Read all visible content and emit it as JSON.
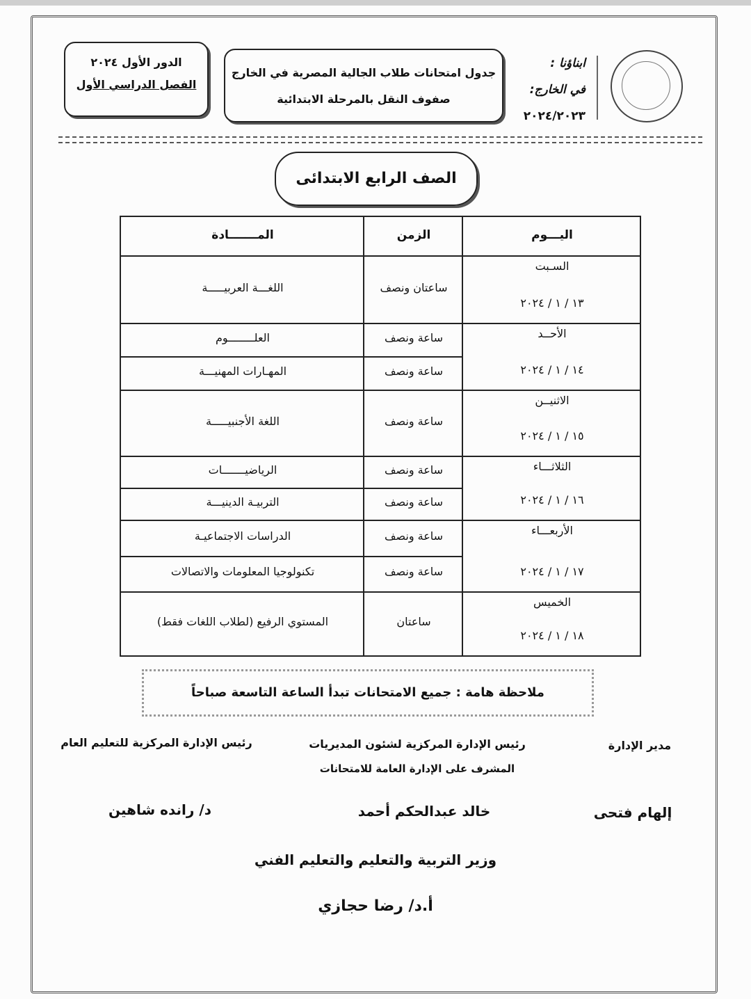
{
  "header": {
    "session": "الدور الأول ٢٠٢٤",
    "term": "الفصل الدراسي الأول",
    "title_line1": "جدول امتحانات طلاب الجالية المصرية في الخارج",
    "title_line2": "صفوف النقل بالمرحلة الابتدائية",
    "side_line1": "ابناؤنا :",
    "side_line2": "في الخارج:",
    "year": "٢٠٢٤/٢٠٢٣"
  },
  "grade": "الصف الرابع الابتدائى",
  "table": {
    "headers": {
      "day": "اليـــوم",
      "time": "الزمن",
      "subject": "المـــــــادة"
    },
    "days": [
      {
        "day": "السـبت",
        "date": "١٣ / ١ / ٢٠٢٤",
        "exams": [
          {
            "subject": "اللغـــة العربيـــــة",
            "time": "ساعتان ونصف"
          }
        ]
      },
      {
        "day": "الأحــد",
        "date": "١٤ / ١ / ٢٠٢٤",
        "exams": [
          {
            "subject": "العلــــــــوم",
            "time": "ساعة ونصف"
          },
          {
            "subject": "المهـارات المهنيـــة",
            "time": "ساعة ونصف"
          }
        ]
      },
      {
        "day": "الاثنيــن",
        "date": "١٥ / ١ / ٢٠٢٤",
        "exams": [
          {
            "subject": "اللغة الأجنبيـــــة",
            "time": "ساعة ونصف"
          }
        ]
      },
      {
        "day": "الثلاثـــاء",
        "date": "١٦ / ١ / ٢٠٢٤",
        "exams": [
          {
            "subject": "الرياضيـــــــات",
            "time": "ساعة ونصف"
          },
          {
            "subject": "التربيـة الدينيـــة",
            "time": "ساعة ونصف"
          }
        ]
      },
      {
        "day": "الأربعـــاء",
        "date": "١٧ / ١ / ٢٠٢٤",
        "exams": [
          {
            "subject": "الدراسات الاجتماعيـة",
            "time": "ساعة ونصف"
          },
          {
            "subject": "تكنولوجيا المعلومات والاتصالات",
            "time": "ساعة ونصف"
          }
        ]
      },
      {
        "day": "الخميس",
        "date": "١٨ / ١ / ٢٠٢٤",
        "exams": [
          {
            "subject": "المستوي الرفيع (لطلاب اللغات فقط)",
            "time": "ساعتان"
          }
        ]
      }
    ]
  },
  "note": "ملاحظة هامة : جميع الامتحانات تبدأ الساعة التاسعة صباحاً",
  "signatures": {
    "right_title": "مدير الإدارة",
    "right_name": "إلهام فتحى",
    "center_title": "رئيس الإدارة المركزية لشئون المديريات",
    "center_subtitle": "المشرف على الإدارة العامة للامتحانات",
    "center_name": "خالد عبدالحكم أحمد",
    "left_title": "رئيس الإدارة المركزية للتعليم العام",
    "left_name": "د/ رانده شاهين",
    "minister_title": "وزير التربية والتعليم والتعليم الفني",
    "minister_name": "أ.د/ رضا حجازي"
  }
}
